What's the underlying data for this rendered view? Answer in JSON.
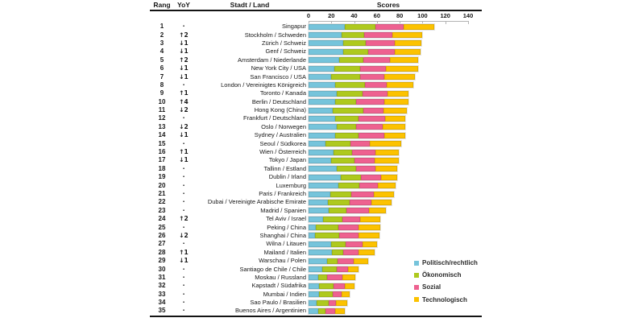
{
  "table": {
    "headers": {
      "rang": "Rang",
      "yoy": "YoY",
      "stadt_land": "Stadt / Land",
      "scores": "Scores"
    }
  },
  "legend": {
    "items": [
      {
        "label": "Politisch/rechtlich",
        "color": "#76C4DB"
      },
      {
        "label": "Ökonomisch",
        "color": "#AEC91E"
      },
      {
        "label": "Sozial",
        "color": "#EE6190"
      },
      {
        "label": "Technologisch",
        "color": "#FCC200"
      }
    ]
  },
  "chart_data": {
    "type": "bar",
    "subtype": "horizontal-stacked",
    "title": "Scores",
    "xlabel": "Scores",
    "ylabel": "Stadt / Land",
    "axis": {
      "min": 0,
      "max": 140,
      "ticks": [
        0,
        20,
        40,
        60,
        80,
        100,
        120,
        140
      ]
    },
    "grid": false,
    "legend_position": "bottom-right",
    "series_names": [
      "Politisch/rechtlich",
      "Ökonomisch",
      "Sozial",
      "Technologisch"
    ],
    "colors": [
      "#76C4DB",
      "#AEC91E",
      "#EE6190",
      "#FCC200"
    ],
    "rows": [
      {
        "rang": "1",
        "yoy": "·",
        "city": "Singapur",
        "values": [
          31.5,
          27,
          25,
          26.5
        ],
        "total": 110
      },
      {
        "rang": "2",
        "yoy": "↑2",
        "city": "Stockholm / Schweden",
        "values": [
          29,
          20,
          24.5,
          26
        ],
        "total": 99.5
      },
      {
        "rang": "3",
        "yoy": "↓1",
        "city": "Zürich / Schweiz",
        "values": [
          30.5,
          20,
          25.5,
          23
        ],
        "total": 99
      },
      {
        "rang": "4",
        "yoy": "↓1",
        "city": "Genf / Schweiz",
        "values": [
          30.5,
          21.5,
          23.5,
          23
        ],
        "total": 98.5
      },
      {
        "rang": "5",
        "yoy": "↑2",
        "city": "Amsterdam / Niederlande",
        "values": [
          27,
          21,
          23.5,
          25
        ],
        "total": 96.5
      },
      {
        "rang": "6",
        "yoy": "↓1",
        "city": "New York City / USA",
        "values": [
          22.5,
          22.5,
          23,
          28
        ],
        "total": 96
      },
      {
        "rang": "7",
        "yoy": "↓1",
        "city": "San Francisco / USA",
        "values": [
          20,
          25,
          21.5,
          27
        ],
        "total": 93.5
      },
      {
        "rang": "8",
        "yoy": "·",
        "city": "London / Vereinigtes Königreich",
        "values": [
          23,
          26.5,
          19,
          23.5
        ],
        "total": 92
      },
      {
        "rang": "9",
        "yoy": "↑1",
        "city": "Toronto / Kanada",
        "values": [
          25,
          22.5,
          21.5,
          19
        ],
        "total": 88
      },
      {
        "rang": "10",
        "yoy": "↑4",
        "city": "Berlin / Deutschland",
        "values": [
          23,
          18.5,
          25,
          21
        ],
        "total": 87.5
      },
      {
        "rang": "11",
        "yoy": "↓2",
        "city": "Hong Kong (China)",
        "values": [
          21,
          27,
          18,
          20
        ],
        "total": 86
      },
      {
        "rang": "12",
        "yoy": "·",
        "city": "Frankfurt / Deutschland",
        "values": [
          23,
          21,
          23,
          18
        ],
        "total": 85
      },
      {
        "rang": "13",
        "yoy": "↓2",
        "city": "Oslo / Norwegen",
        "values": [
          25,
          17,
          23,
          20
        ],
        "total": 85
      },
      {
        "rang": "14",
        "yoy": "↓1",
        "city": "Sydney / Australien",
        "values": [
          23.5,
          20,
          23,
          18.5
        ],
        "total": 85
      },
      {
        "rang": "15",
        "yoy": "·",
        "city": "Seoul / Südkorea",
        "values": [
          15,
          21.5,
          17.5,
          27.5
        ],
        "total": 81.5
      },
      {
        "rang": "16",
        "yoy": "↑1",
        "city": "Wien / Österreich",
        "values": [
          22,
          16.5,
          20.5,
          20.5
        ],
        "total": 79.5
      },
      {
        "rang": "17",
        "yoy": "↓1",
        "city": "Tokyo / Japan",
        "values": [
          19.5,
          20.5,
          18,
          21
        ],
        "total": 79
      },
      {
        "rang": "18",
        "yoy": "·",
        "city": "Tallinn / Estland",
        "values": [
          24.5,
          17,
          17,
          19
        ],
        "total": 77.5
      },
      {
        "rang": "19",
        "yoy": "·",
        "city": "Dublin / Irland",
        "values": [
          28.5,
          17.5,
          17.5,
          14
        ],
        "total": 77.5
      },
      {
        "rang": "20",
        "yoy": "·",
        "city": "Luxemburg",
        "values": [
          26.5,
          18,
          16,
          16
        ],
        "total": 76.5
      },
      {
        "rang": "21",
        "yoy": "·",
        "city": "Paris / Frankreich",
        "values": [
          19,
          18.5,
          19.5,
          18
        ],
        "total": 75
      },
      {
        "rang": "22",
        "yoy": "·",
        "city": "Dubai / Vereinigte Arabische Emirate",
        "values": [
          17,
          19,
          19,
          18
        ],
        "total": 73
      },
      {
        "rang": "23",
        "yoy": "·",
        "city": "Madrid / Spanien",
        "values": [
          18,
          15.5,
          19.5,
          15
        ],
        "total": 68
      },
      {
        "rang": "24",
        "yoy": "↑2",
        "city": "Tel Aviv / Israel",
        "values": [
          12.5,
          17,
          15.5,
          18
        ],
        "total": 63
      },
      {
        "rang": "25",
        "yoy": "·",
        "city": "Peking / China",
        "values": [
          6.5,
          19.5,
          18,
          19
        ],
        "total": 63
      },
      {
        "rang": "26",
        "yoy": "↓2",
        "city": "Shanghai / China",
        "values": [
          6,
          21,
          17,
          18
        ],
        "total": 62
      },
      {
        "rang": "27",
        "yoy": "·",
        "city": "Wilna / Litauen",
        "values": [
          19.5,
          13,
          15,
          12.5
        ],
        "total": 60
      },
      {
        "rang": "28",
        "yoy": "↑1",
        "city": "Mailand / Italien",
        "values": [
          20.5,
          10,
          13.5,
          14
        ],
        "total": 58
      },
      {
        "rang": "29",
        "yoy": "↓1",
        "city": "Warschau / Polen",
        "values": [
          16.5,
          9,
          14,
          13
        ],
        "total": 52.5
      },
      {
        "rang": "30",
        "yoy": "·",
        "city": "Santiago de Chile / Chile",
        "values": [
          12,
          12.5,
          10,
          9.5
        ],
        "total": 44
      },
      {
        "rang": "31",
        "yoy": "·",
        "city": "Moskau / Russland",
        "values": [
          8.5,
          8,
          13,
          11.5
        ],
        "total": 41
      },
      {
        "rang": "32",
        "yoy": "·",
        "city": "Kapstadt / Südafrika",
        "values": [
          9,
          13,
          9.5,
          8.5
        ],
        "total": 40
      },
      {
        "rang": "33",
        "yoy": "·",
        "city": "Mumbai / Indien",
        "values": [
          9,
          12.5,
          7.5,
          7
        ],
        "total": 36
      },
      {
        "rang": "34",
        "yoy": "·",
        "city": "Sao Paulo / Brasilien",
        "values": [
          7,
          10.5,
          6.5,
          10
        ],
        "total": 34
      },
      {
        "rang": "35",
        "yoy": "·",
        "city": "Buenos Aires / Argentinien",
        "values": [
          8.5,
          6.5,
          8.5,
          8
        ],
        "total": 31.5
      }
    ]
  }
}
